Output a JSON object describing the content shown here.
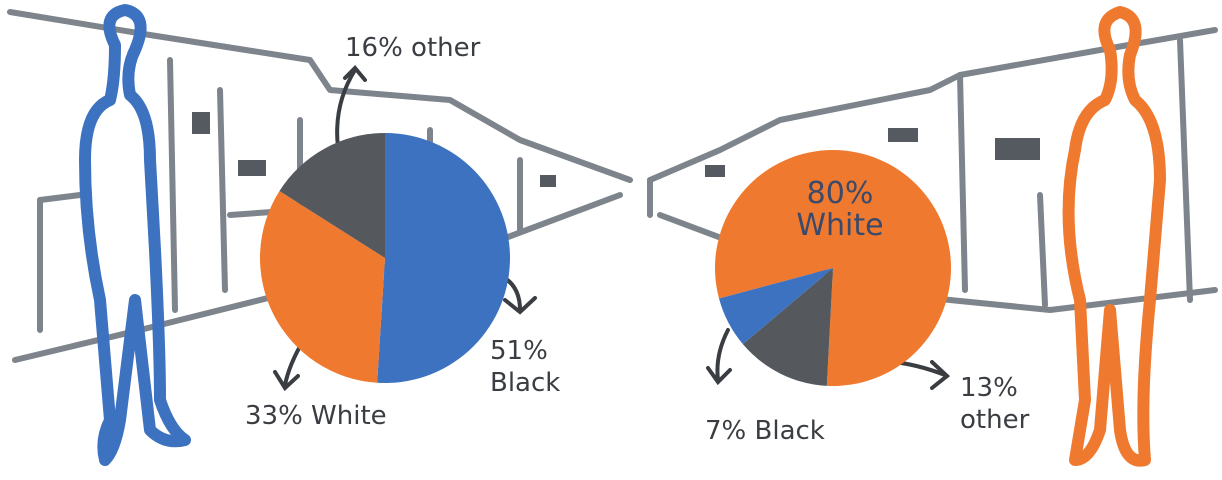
{
  "chart_data": [
    {
      "type": "pie",
      "values": [
        51,
        33,
        16
      ],
      "value_labels": [
        "51% Black",
        "33% White",
        "16% other"
      ],
      "colors": [
        "#3d72c0",
        "#ef7a2f",
        "#55595e"
      ]
    },
    {
      "type": "pie",
      "values": [
        80,
        13,
        7
      ],
      "value_labels": [
        "80% White",
        "13% other",
        "7% Black"
      ],
      "colors": [
        "#ef7a2f",
        "#55595e",
        "#3d72c0"
      ]
    }
  ]
}
